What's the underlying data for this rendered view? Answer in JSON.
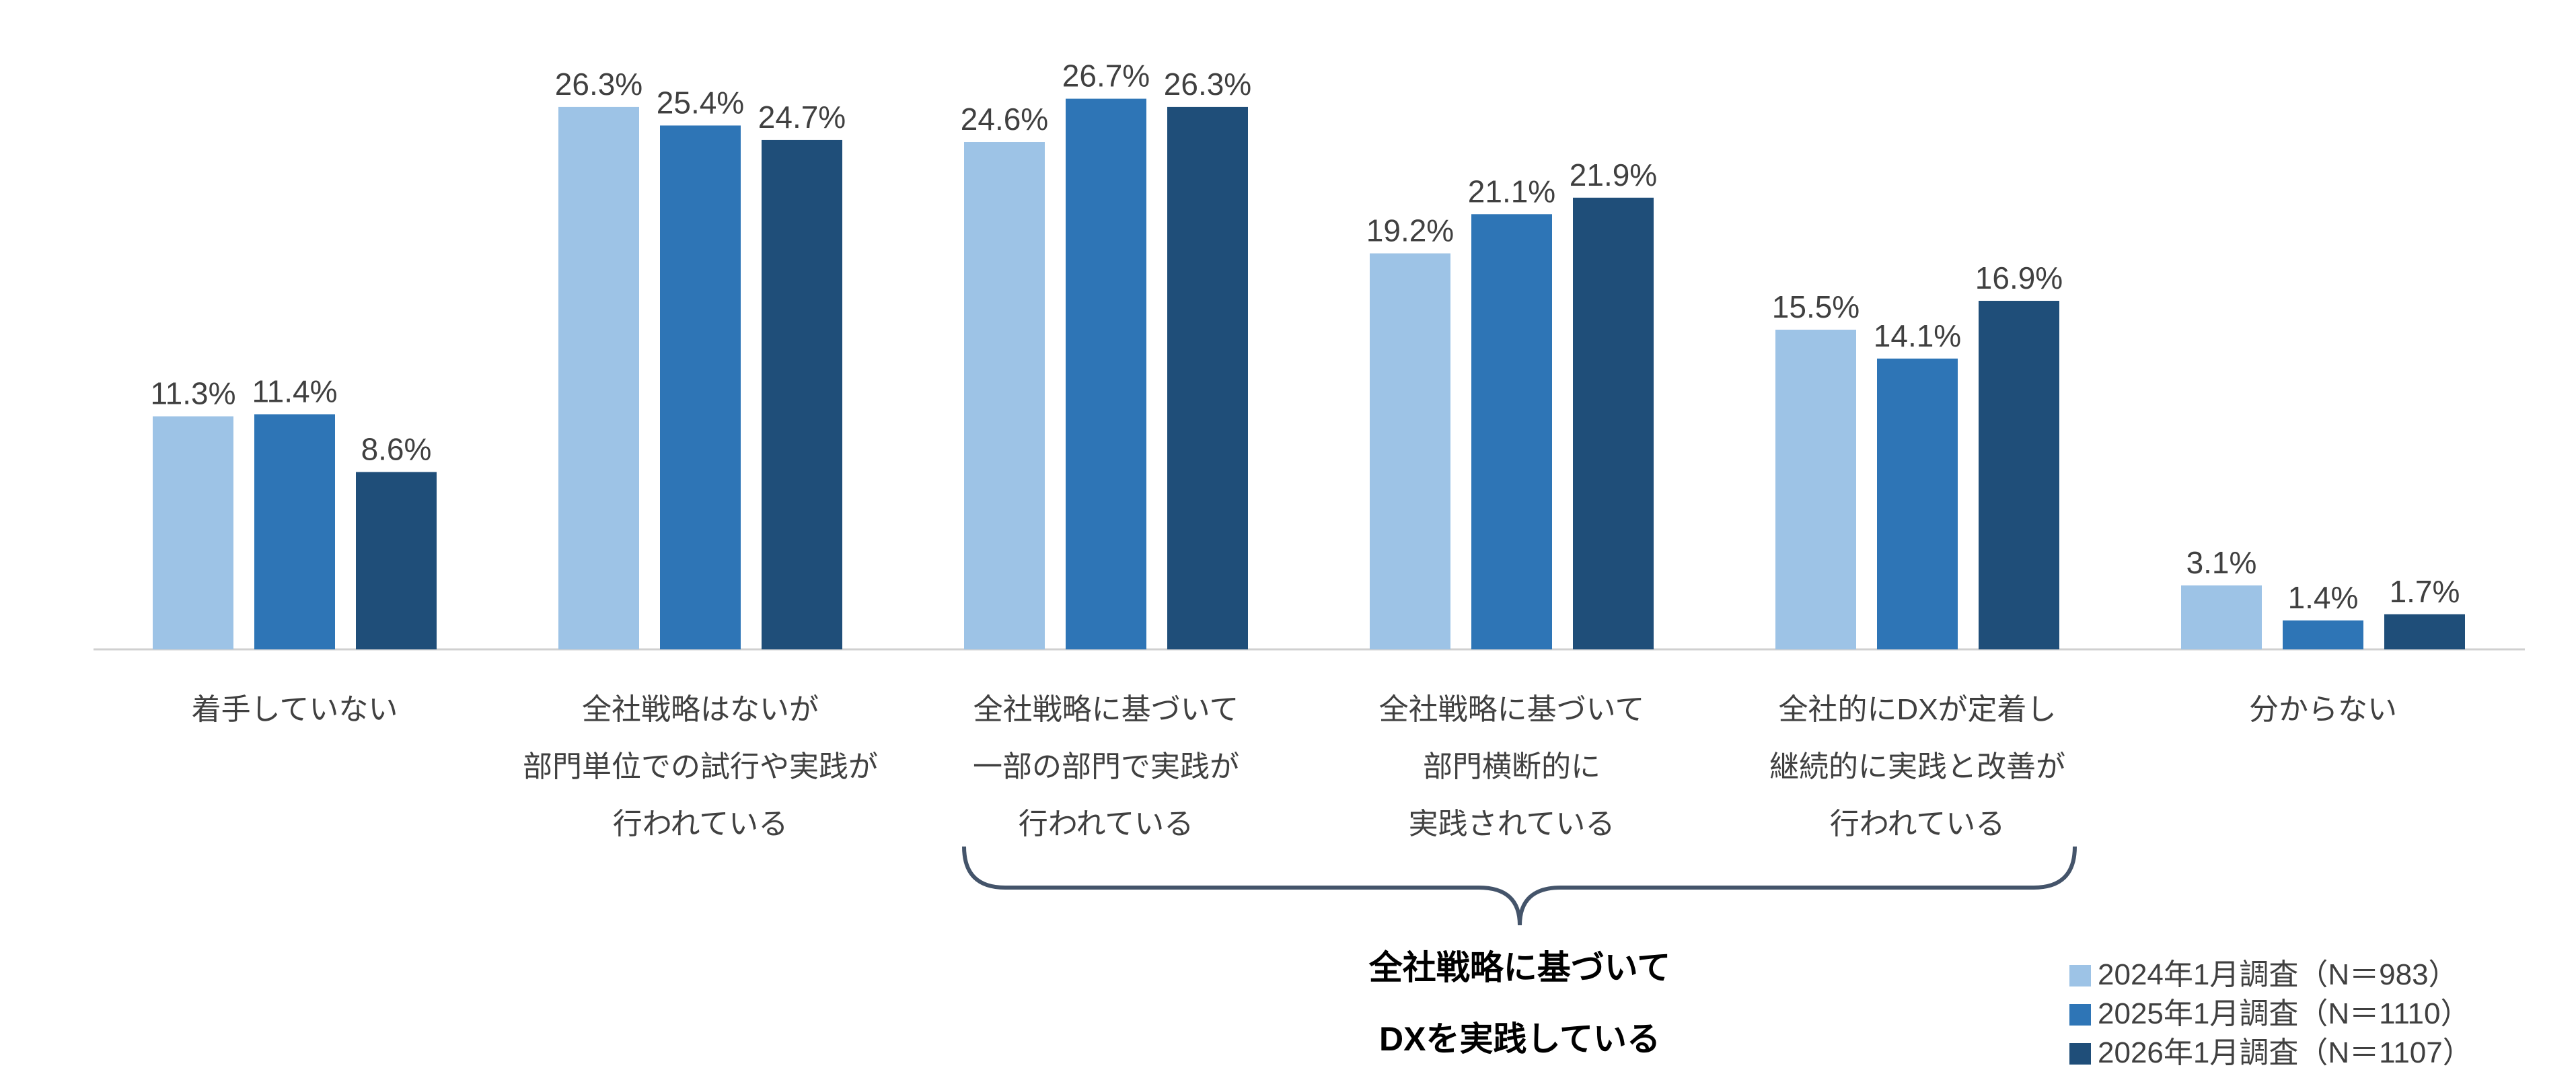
{
  "chart_data": {
    "type": "bar",
    "categories": [
      "着手していない",
      "全社戦略はないが\n部門単位での試行や実践が\n行われている",
      "全社戦略に基づいて\n一部の部門で実践が\n行われている",
      "全社戦略に基づいて\n部門横断的に\n実践されている",
      "全社的にDXが定着し\n継続的に実践と改善が\n行われている",
      "分からない"
    ],
    "series": [
      {
        "name": "2024年1月調査（N＝983）",
        "color": "#9dc3e6",
        "values": [
          11.3,
          26.3,
          24.6,
          19.2,
          15.5,
          3.1
        ],
        "value_labels": [
          "11.3%",
          "26.3%",
          "24.6%",
          "19.2%",
          "15.5%",
          "3.1%"
        ]
      },
      {
        "name": "2025年1月調査（N＝1110）",
        "color": "#2e75b6",
        "values": [
          11.4,
          25.4,
          26.7,
          21.1,
          14.1,
          1.4
        ],
        "value_labels": [
          "11.4%",
          "25.4%",
          "26.7%",
          "21.1%",
          "14.1%",
          "1.4%"
        ]
      },
      {
        "name": "2026年1月調査（N＝1107）",
        "color": "#1f4e79",
        "values": [
          8.6,
          24.7,
          26.3,
          21.9,
          16.9,
          1.7
        ],
        "value_labels": [
          "8.6%",
          "24.7%",
          "26.3%",
          "21.9%",
          "16.9%",
          "1.7%"
        ]
      }
    ],
    "annotation": "全社戦略に基づいて\nDXを実践している",
    "legend": "bottom-right"
  }
}
